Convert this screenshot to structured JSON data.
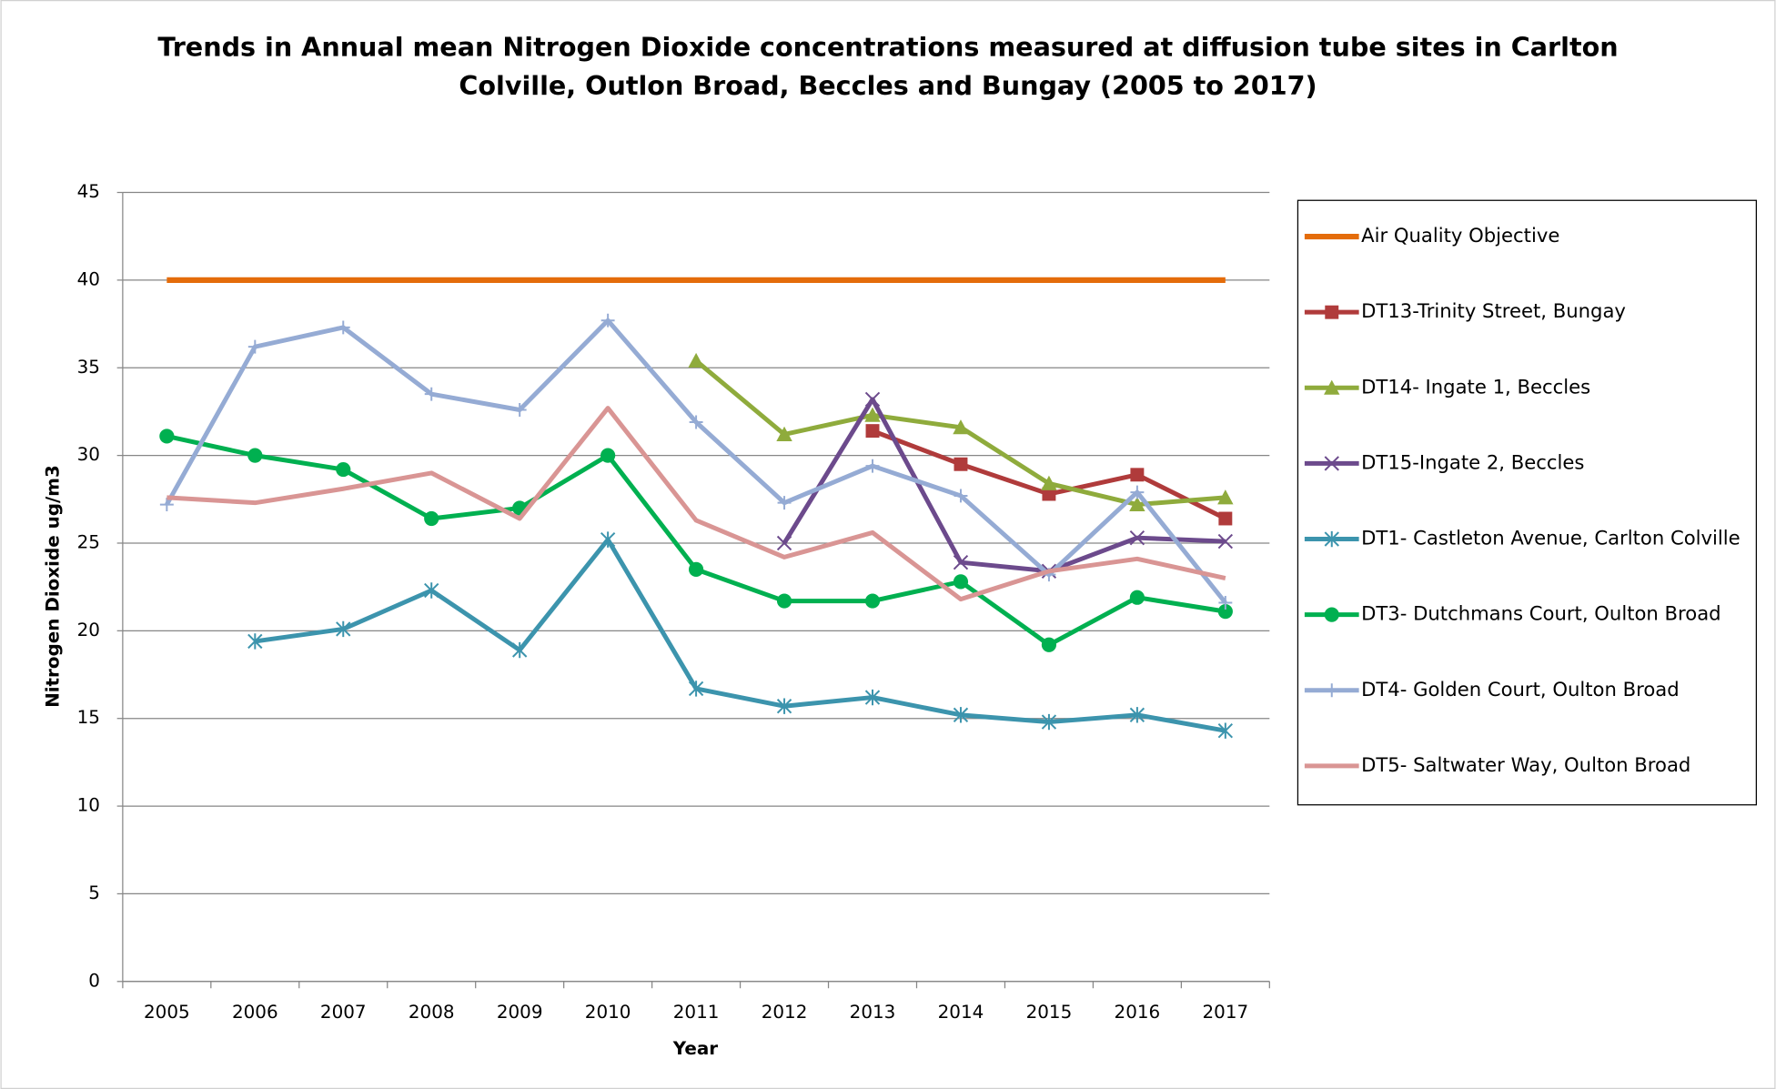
{
  "chart_data": {
    "type": "line",
    "title": [
      "Trends in Annual mean Nitrogen Dioxide concentrations measured at diffusion tube sites in Carlton",
      "Colville, Outlon Broad, Beccles and Bungay (2005 to 2017)"
    ],
    "x_label": "Year",
    "y_label": "Nitrogen Dioxide ug/m3",
    "categories": [
      "2005",
      "2006",
      "2007",
      "2008",
      "2009",
      "2010",
      "2011",
      "2012",
      "2013",
      "2014",
      "2015",
      "2016",
      "2017"
    ],
    "ylim": [
      0,
      45
    ],
    "yticks": [
      0,
      5,
      10,
      15,
      20,
      25,
      30,
      35,
      40,
      45
    ],
    "grid": true,
    "legend": "right",
    "series": [
      {
        "name": "Air Quality Objective",
        "color": "#e46c0a",
        "marker": "none",
        "values": [
          40,
          40,
          40,
          40,
          40,
          40,
          40,
          40,
          40,
          40,
          40,
          40,
          40
        ]
      },
      {
        "name": "DT13-Trinity Street, Bungay",
        "color": "#b03b3b",
        "marker": "square",
        "values": [
          null,
          null,
          null,
          null,
          null,
          null,
          null,
          null,
          31.4,
          29.5,
          27.8,
          28.9,
          26.4
        ]
      },
      {
        "name": "DT14- Ingate 1, Beccles",
        "color": "#8fab3c",
        "marker": "triangle",
        "values": [
          null,
          null,
          null,
          null,
          null,
          null,
          35.4,
          31.2,
          32.3,
          31.6,
          28.4,
          27.2,
          27.6
        ]
      },
      {
        "name": "DT15-Ingate 2, Beccles",
        "color": "#6c4a8c",
        "marker": "x",
        "values": [
          null,
          null,
          null,
          null,
          null,
          null,
          null,
          25.0,
          33.2,
          23.9,
          23.4,
          25.3,
          25.1
        ]
      },
      {
        "name": "DT1- Castleton Avenue, Carlton Colville",
        "color": "#3c94ad",
        "marker": "asterisk",
        "values": [
          null,
          19.4,
          20.1,
          22.3,
          18.9,
          25.2,
          16.7,
          15.7,
          16.2,
          15.2,
          14.8,
          15.2,
          14.3
        ]
      },
      {
        "name": "DT3- Dutchmans Court, Oulton Broad",
        "color": "#00b050",
        "marker": "circle",
        "values": [
          31.1,
          30.0,
          29.2,
          26.4,
          27.0,
          30.0,
          23.5,
          21.7,
          21.7,
          22.8,
          19.2,
          21.9,
          21.1
        ]
      },
      {
        "name": "DT4- Golden Court, Oulton Broad",
        "color": "#95abd4",
        "marker": "plus",
        "values": [
          27.2,
          36.2,
          37.3,
          33.5,
          32.6,
          37.7,
          31.9,
          27.3,
          29.4,
          27.7,
          23.2,
          27.9,
          21.6
        ]
      },
      {
        "name": "DT5- Saltwater Way, Oulton Broad",
        "color": "#d99594",
        "marker": "none",
        "values": [
          27.6,
          27.3,
          28.1,
          29.0,
          26.4,
          32.7,
          26.3,
          24.2,
          25.6,
          21.8,
          23.4,
          24.1,
          23.0
        ]
      }
    ]
  }
}
